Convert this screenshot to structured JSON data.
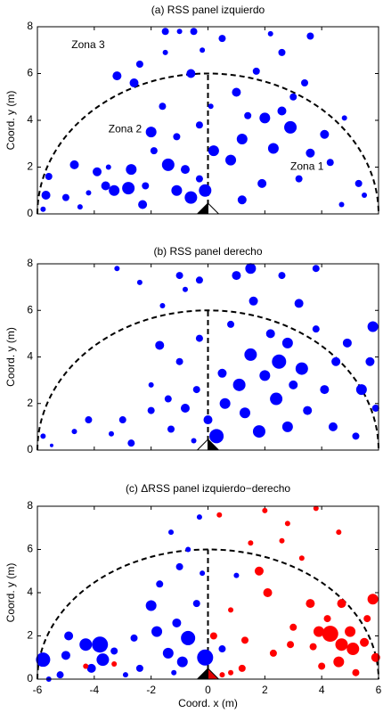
{
  "chart_data": [
    {
      "type": "scatter",
      "title": "(a) RSS panel izquierdo",
      "ylabel": "Coord. y (m)",
      "xlim": [
        -6,
        6
      ],
      "ylim": [
        0,
        8
      ],
      "xticks": [
        -6,
        -4,
        -2,
        0,
        2,
        4,
        6
      ],
      "yticks": [
        0,
        2,
        4,
        6,
        8
      ],
      "xtick_labels": false,
      "annotations": [
        {
          "text": "Zona 3",
          "x": -4.8,
          "y": 7.2
        },
        {
          "text": "Zona 2",
          "x": -3.5,
          "y": 3.6
        },
        {
          "text": "Zona 1",
          "x": 2.9,
          "y": 2.0
        }
      ],
      "series": [
        {
          "color": "#0000ff",
          "x": [
            -5.8,
            -5.7,
            -5.6,
            -5,
            -4.7,
            -4.2,
            -3.9,
            -3.6,
            -3.5,
            -3.3,
            -2.8,
            -2.7,
            -2.3,
            -2.2,
            -2,
            -1.9,
            -1.6,
            -1.4,
            -1.1,
            -1.1,
            -0.8,
            -0.6,
            -0.3,
            -0.1,
            -0.3,
            -0.2,
            -1.5,
            -1,
            -0.5,
            -1.5,
            0.5,
            0.2,
            0.1,
            0.8,
            1,
            1.2,
            1.4,
            1.7,
            1.9,
            2,
            2.3,
            2.6,
            2.9,
            3.2,
            3.4,
            3.6,
            3.6,
            4.1,
            4.3,
            4.7,
            5.3,
            5.5,
            2.2,
            2.6,
            -3.2,
            -2.6,
            -2.4,
            -0.6,
            1.2,
            -4.5,
            4.8,
            3
          ],
          "values": [
            0.2,
            0.8,
            1.6,
            0.7,
            2.1,
            0.9,
            1.8,
            1.2,
            2,
            1,
            1.1,
            1.9,
            0.4,
            1.2,
            3.5,
            2.7,
            4.6,
            2.1,
            1,
            3.3,
            1.9,
            0.7,
            1.5,
            1,
            3.8,
            7,
            7.8,
            7.8,
            7.8,
            6.9,
            7.5,
            2.7,
            4.6,
            2.3,
            5.2,
            3.2,
            4.2,
            6.1,
            1.3,
            4.1,
            2.8,
            4.4,
            3.7,
            1.5,
            5.6,
            2.6,
            7.6,
            3.4,
            2.2,
            0.4,
            1.3,
            0.8,
            7.7,
            6.9,
            5.9,
            5.6,
            6.4,
            6,
            0.6,
            0.3,
            4.1,
            5
          ],
          "sizes": [
            3,
            5,
            4,
            4,
            5,
            3,
            5,
            5,
            3,
            6,
            7,
            6,
            5,
            4,
            6,
            4,
            4,
            7,
            6,
            4,
            5,
            7,
            4,
            7,
            4,
            3,
            4,
            3,
            4,
            3,
            4,
            6,
            3,
            6,
            5,
            6,
            4,
            4,
            5,
            6,
            6,
            5,
            7,
            4,
            4,
            5,
            4,
            5,
            4,
            3,
            4,
            3,
            3,
            4,
            5,
            5,
            4,
            5,
            5,
            3,
            3,
            4
          ]
        }
      ]
    },
    {
      "type": "scatter",
      "title": "(b) RSS panel derecho",
      "ylabel": "Coord. y (m)",
      "xlim": [
        -6,
        6
      ],
      "ylim": [
        0,
        8
      ],
      "xticks": [
        -6,
        -4,
        -2,
        0,
        2,
        4,
        6
      ],
      "yticks": [
        0,
        2,
        4,
        6,
        8
      ],
      "xtick_labels": false,
      "series": [
        {
          "color": "#0000ff",
          "x": [
            -5.8,
            -5.5,
            -4.7,
            -4.2,
            -3.4,
            -3,
            -2.7,
            -2,
            -2,
            -1.7,
            -1.4,
            -1.3,
            -1,
            -0.8,
            -0.5,
            -0.4,
            -0.3,
            0,
            0.3,
            0.5,
            0.6,
            0.8,
            1,
            1.1,
            1.3,
            1.5,
            1.6,
            1.8,
            2,
            2.2,
            2.4,
            2.5,
            2.8,
            2.8,
            3,
            3.2,
            3.3,
            3.5,
            3.8,
            4.1,
            4.4,
            4.5,
            4.9,
            5.2,
            5.4,
            5.8,
            5.7,
            5.9,
            -3.2,
            -2.4,
            -1,
            -0.3,
            1.5,
            2.6,
            3.8,
            -1.6,
            -0.8
          ],
          "values": [
            0.6,
            0.2,
            0.8,
            1.3,
            0.7,
            1.3,
            0.3,
            1.7,
            2.8,
            4.5,
            2.2,
            0.9,
            3.8,
            1.8,
            0.4,
            2.6,
            4.8,
            1.3,
            0.6,
            3.3,
            2,
            5.4,
            7.5,
            2.8,
            1.6,
            4.1,
            6.4,
            0.8,
            3.2,
            5,
            2.2,
            3.8,
            1,
            4.6,
            2.8,
            6.3,
            3.5,
            1.7,
            5.2,
            2.6,
            1,
            3.8,
            4.6,
            0.6,
            2.6,
            5.3,
            3.8,
            1.8,
            7.8,
            7.2,
            7.5,
            7.3,
            7.8,
            7.5,
            7.8,
            6.2,
            6.9
          ],
          "sizes": [
            3,
            2,
            3,
            4,
            3,
            4,
            4,
            4,
            3,
            5,
            4,
            4,
            4,
            5,
            3,
            4,
            4,
            5,
            8,
            5,
            6,
            4,
            5,
            7,
            6,
            7,
            5,
            7,
            6,
            5,
            7,
            8,
            6,
            6,
            5,
            5,
            7,
            5,
            4,
            5,
            5,
            5,
            5,
            4,
            6,
            6,
            5,
            4,
            3,
            3,
            4,
            4,
            6,
            4,
            4,
            3,
            3
          ]
        }
      ]
    },
    {
      "type": "scatter",
      "title": "(c) ΔRSS panel izquierdo−derecho",
      "ylabel": "Coord. y (m)",
      "xlabel": "Coord. x (m)",
      "xlim": [
        -6,
        6
      ],
      "ylim": [
        0,
        8
      ],
      "xticks": [
        -6,
        -4,
        -2,
        0,
        2,
        4,
        6
      ],
      "yticks": [
        0,
        2,
        4,
        6,
        8
      ],
      "xtick_labels": true,
      "series": [
        {
          "color": "#0000ff",
          "x": [
            -5.8,
            -5.2,
            -5,
            -4.9,
            -4.3,
            -4.1,
            -3.8,
            -3.7,
            -3.3,
            -2.4,
            -2,
            -1.8,
            -1.7,
            -1.4,
            -1.1,
            -1.2,
            -0.9,
            -0.7,
            -0.4,
            -0.2,
            -0.7,
            -1.3,
            -0.3,
            -1,
            -2.6,
            -5.6,
            -0.1,
            -2.9,
            0.5,
            1
          ],
          "values": [
            0.9,
            0.2,
            1.1,
            2,
            1.6,
            0.5,
            1.6,
            0.9,
            1.3,
            0.5,
            3.4,
            2.2,
            4.4,
            1.2,
            2.6,
            0.3,
            0.8,
            1.9,
            3.5,
            4.9,
            6,
            6.8,
            7.5,
            5.2,
            1.9,
            0,
            1,
            0.2,
            1.4,
            4.8
          ],
          "sizes": [
            8,
            4,
            5,
            5,
            7,
            5,
            9,
            7,
            4,
            4,
            6,
            6,
            4,
            6,
            5,
            3,
            6,
            8,
            4,
            3,
            3,
            3,
            3,
            4,
            4,
            3,
            9,
            3,
            4,
            3
          ]
        },
        {
          "color": "#ff0000",
          "x": [
            0.2,
            0.4,
            0.8,
            1.3,
            1.8,
            1.5,
            2.1,
            2.3,
            2.6,
            2.9,
            3,
            3.3,
            3.6,
            3.7,
            3.9,
            4,
            4.2,
            4.3,
            4.6,
            4.7,
            4.7,
            5,
            5.1,
            5.2,
            5.5,
            5.8,
            5.6,
            5.9,
            0.8,
            2,
            2.8,
            3.8,
            4.6,
            -4.3,
            -3.3,
            1.2,
            0.5
          ],
          "values": [
            2,
            7.6,
            3.2,
            1.8,
            5,
            6.3,
            4,
            1.2,
            6.4,
            1.6,
            2.4,
            5.6,
            3.5,
            1.5,
            2.2,
            0.6,
            2.8,
            2.1,
            0.8,
            3.5,
            1.6,
            2.2,
            1.4,
            0.3,
            1.7,
            3.7,
            2.8,
            1,
            0.3,
            7.8,
            7.2,
            7.9,
            6.8,
            0.6,
            0.7,
            0.5,
            0.2
          ],
          "sizes": [
            4,
            3,
            3,
            4,
            5,
            3,
            5,
            4,
            3,
            4,
            4,
            3,
            5,
            4,
            6,
            4,
            4,
            9,
            6,
            5,
            7,
            6,
            7,
            4,
            5,
            6,
            4,
            5,
            3,
            3,
            3,
            3,
            3,
            3,
            3,
            4,
            3
          ]
        }
      ]
    }
  ]
}
